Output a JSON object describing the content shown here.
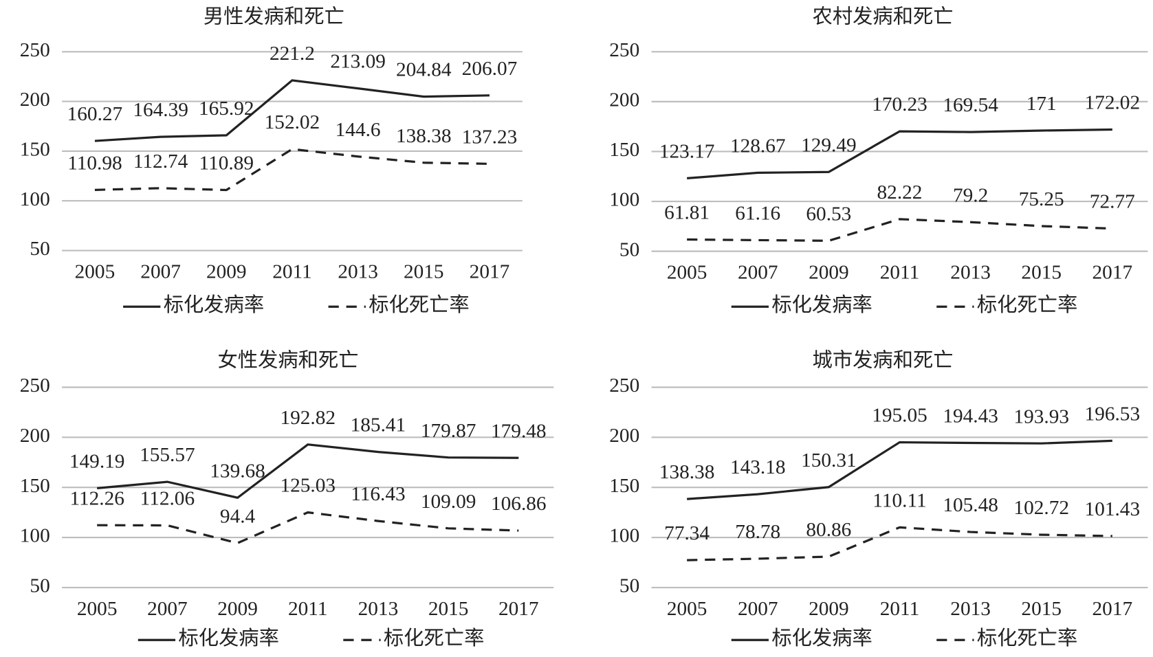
{
  "chart_data": [
    {
      "type": "line",
      "title": "男性发病和死亡",
      "categories": [
        "2005",
        "2007",
        "2009",
        "2011",
        "2013",
        "2015",
        "2017"
      ],
      "series": [
        {
          "name": "标化发病率",
          "color": "#222222",
          "dash": false,
          "values": [
            160.27,
            164.39,
            165.92,
            221.2,
            213.09,
            204.84,
            206.07
          ]
        },
        {
          "name": "标化死亡率",
          "color": "#222222",
          "dash": true,
          "values": [
            110.98,
            112.74,
            110.89,
            152.02,
            144.6,
            138.38,
            137.23
          ]
        }
      ],
      "ylim": [
        50,
        250
      ],
      "yticks": [
        50,
        100,
        150,
        200,
        250
      ],
      "grid": true,
      "legend": "bottom"
    },
    {
      "type": "line",
      "title": "农村发病和死亡",
      "categories": [
        "2005",
        "2007",
        "2009",
        "2011",
        "2013",
        "2015",
        "2017"
      ],
      "series": [
        {
          "name": "标化发病率",
          "color": "#222222",
          "dash": false,
          "values": [
            123.17,
            128.67,
            129.49,
            170.23,
            169.54,
            171,
            172.02
          ]
        },
        {
          "name": "标化死亡率",
          "color": "#222222",
          "dash": true,
          "values": [
            61.81,
            61.16,
            60.53,
            82.22,
            79.2,
            75.25,
            72.77
          ]
        }
      ],
      "ylim": [
        50,
        250
      ],
      "yticks": [
        50,
        100,
        150,
        200,
        250
      ],
      "grid": true,
      "legend": "bottom"
    },
    {
      "type": "line",
      "title": "女性发病和死亡",
      "categories": [
        "2005",
        "2007",
        "2009",
        "2011",
        "2013",
        "2015",
        "2017"
      ],
      "series": [
        {
          "name": "标化发病率",
          "color": "#222222",
          "dash": false,
          "values": [
            149.19,
            155.57,
            139.68,
            192.82,
            185.41,
            179.87,
            179.48
          ]
        },
        {
          "name": "标化死亡率",
          "color": "#222222",
          "dash": true,
          "values": [
            112.26,
            112.06,
            94.4,
            125.03,
            116.43,
            109.09,
            106.86
          ]
        }
      ],
      "ylim": [
        50,
        250
      ],
      "yticks": [
        50,
        100,
        150,
        200,
        250
      ],
      "grid": true,
      "legend": "bottom"
    },
    {
      "type": "line",
      "title": "城市发病和死亡",
      "categories": [
        "2005",
        "2007",
        "2009",
        "2011",
        "2013",
        "2015",
        "2017"
      ],
      "series": [
        {
          "name": "标化发病率",
          "color": "#222222",
          "dash": false,
          "values": [
            138.38,
            143.18,
            150.31,
            195.05,
            194.43,
            193.93,
            196.53
          ]
        },
        {
          "name": "标化死亡率",
          "color": "#222222",
          "dash": true,
          "values": [
            77.34,
            78.78,
            80.86,
            110.11,
            105.48,
            102.72,
            101.43
          ]
        }
      ],
      "ylim": [
        50,
        250
      ],
      "yticks": [
        50,
        100,
        150,
        200,
        250
      ],
      "grid": true,
      "legend": "bottom"
    }
  ]
}
